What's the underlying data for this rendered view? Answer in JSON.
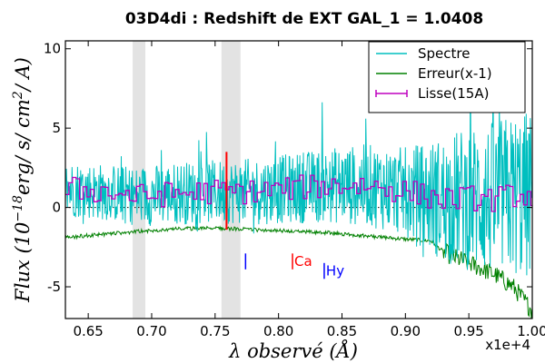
{
  "chart_data": {
    "type": "line",
    "title": "03D4di : Redshift de EXT GAL_1 = 1.0408",
    "xlabel": "λ observé (Å)",
    "ylabel_parts": {
      "prefix": "Flux (10",
      "exponent": "−18",
      "suffix": "erg/ s/ cm",
      "exp2": "2",
      "suffix2": "/ A)"
    },
    "x_offset_label": "x1e+4",
    "xlim": [
      6320,
      10000
    ],
    "ylim": [
      -7,
      10.5
    ],
    "x_ticks": [
      6500,
      7000,
      7500,
      8000,
      8500,
      9000,
      9500,
      10000
    ],
    "x_tick_labels": [
      "0.65",
      "0.70",
      "0.75",
      "0.80",
      "0.85",
      "0.90",
      "0.95",
      "1.00"
    ],
    "y_ticks": [
      -5,
      0,
      5,
      10
    ],
    "y_tick_labels": [
      "-5",
      "0",
      "5",
      "10"
    ],
    "zero_line": true,
    "legend_position": "top-right",
    "series": [
      {
        "name": "Spectre",
        "color": "#00bfbf"
      },
      {
        "name": "Erreur(x-1)",
        "color": "#008000"
      },
      {
        "name": "Lisse(15A)",
        "color": "#bf00bf"
      }
    ],
    "shaded_bands": [
      {
        "x0": 6850,
        "x1": 6950
      },
      {
        "x0": 7550,
        "x1": 7700
      }
    ],
    "emission_marker": {
      "x": 7590,
      "y0": -1.4,
      "y1": 3.5,
      "color": "#ff0000"
    },
    "line_marks": [
      {
        "x": 7740,
        "y0": -3.9,
        "y1": -2.9,
        "label": "",
        "color": "#0000ff"
      },
      {
        "x": 8110,
        "y0": -3.9,
        "y1": -2.9,
        "label": "Ca",
        "color": "#ff0000"
      },
      {
        "x": 8360,
        "y0": -4.5,
        "y1": -3.5,
        "label": "Hy",
        "color": "#0000ff"
      }
    ],
    "error_curve": {
      "x": [
        6320,
        6600,
        6900,
        7200,
        7500,
        7800,
        8100,
        8400,
        8700,
        9000,
        9200,
        9300,
        9400,
        9500,
        9700,
        9850,
        10000
      ],
      "y": [
        -1.9,
        -1.7,
        -1.5,
        -1.35,
        -1.3,
        -1.4,
        -1.5,
        -1.6,
        -1.8,
        -2.0,
        -2.1,
        -2.8,
        -3.2,
        -3.5,
        -4.2,
        -5.0,
        -6.5
      ]
    },
    "spectrum_envelope": {
      "x": [
        6320,
        6600,
        6900,
        7200,
        7500,
        7800,
        8100,
        8400,
        8700,
        9000,
        9300,
        9500,
        9700,
        9850,
        10000
      ],
      "y": [
        1.2,
        1.0,
        0.7,
        0.9,
        1.0,
        1.0,
        1.2,
        1.4,
        1.4,
        1.0,
        0.5,
        0.6,
        0.5,
        0.8,
        0.7
      ],
      "spread": [
        1.8,
        1.8,
        1.9,
        2.0,
        2.0,
        2.1,
        2.2,
        2.4,
        2.6,
        2.8,
        4.0,
        4.6,
        5.0,
        5.2,
        5.5
      ]
    }
  }
}
